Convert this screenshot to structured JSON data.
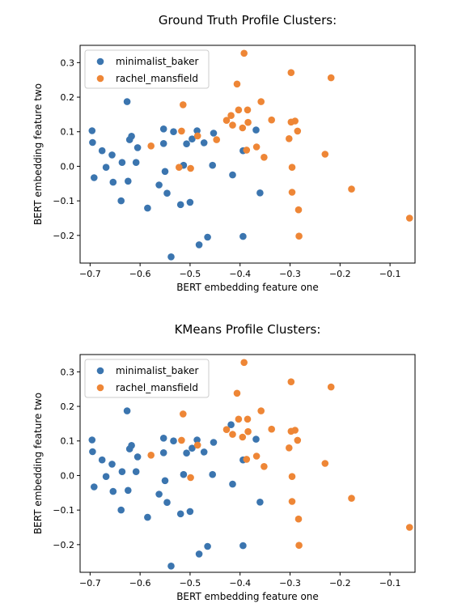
{
  "chart_data": [
    {
      "type": "scatter",
      "title": "Ground Truth Profile Clusters:",
      "xlabel": "BERT embedding feature one",
      "ylabel": "BERT embedding feature two",
      "xlim": [
        -0.72,
        -0.05
      ],
      "ylim": [
        -0.28,
        0.35
      ],
      "xticks": [
        -0.7,
        -0.6,
        -0.5,
        -0.4,
        -0.3,
        -0.2,
        -0.1
      ],
      "xtick_labels": [
        "−0.7",
        "−0.6",
        "−0.5",
        "−0.4",
        "−0.3",
        "−0.2",
        "−0.1"
      ],
      "yticks": [
        -0.2,
        -0.1,
        0.0,
        0.1,
        0.2,
        0.3
      ],
      "ytick_labels": [
        "−0.2",
        "−0.1",
        "0.0",
        "0.1",
        "0.2",
        "0.3"
      ],
      "legend": "top-left",
      "series": [
        {
          "name": "minimalist_baker",
          "color": "#3b75af",
          "points": [
            [
              -0.696,
              0.103
            ],
            [
              -0.695,
              0.069
            ],
            [
              -0.692,
              -0.033
            ],
            [
              -0.676,
              0.045
            ],
            [
              -0.668,
              -0.003
            ],
            [
              -0.656,
              0.033
            ],
            [
              -0.654,
              -0.046
            ],
            [
              -0.638,
              -0.1
            ],
            [
              -0.636,
              0.011
            ],
            [
              -0.626,
              0.187
            ],
            [
              -0.624,
              -0.043
            ],
            [
              -0.621,
              0.077
            ],
            [
              -0.617,
              0.087
            ],
            [
              -0.608,
              0.011
            ],
            [
              -0.605,
              0.054
            ],
            [
              -0.585,
              -0.121
            ],
            [
              -0.562,
              -0.054
            ],
            [
              -0.553,
              0.066
            ],
            [
              -0.553,
              0.108
            ],
            [
              -0.55,
              -0.015
            ],
            [
              -0.546,
              -0.078
            ],
            [
              -0.538,
              -0.262
            ],
            [
              -0.533,
              0.1
            ],
            [
              -0.519,
              -0.111
            ],
            [
              -0.513,
              0.003
            ],
            [
              -0.507,
              0.065
            ],
            [
              -0.5,
              -0.104
            ],
            [
              -0.496,
              0.079
            ],
            [
              -0.486,
              0.103
            ],
            [
              -0.482,
              -0.227
            ],
            [
              -0.472,
              0.068
            ],
            [
              -0.465,
              -0.205
            ],
            [
              -0.455,
              0.003
            ],
            [
              -0.453,
              0.096
            ],
            [
              -0.415,
              -0.025
            ],
            [
              -0.394,
              -0.203
            ],
            [
              -0.394,
              0.045
            ],
            [
              -0.368,
              0.105
            ],
            [
              -0.36,
              -0.077
            ]
          ]
        },
        {
          "name": "rachel_mansfield",
          "color": "#ee8636",
          "points": [
            [
              -0.578,
              0.059
            ],
            [
              -0.522,
              -0.003
            ],
            [
              -0.517,
              0.102
            ],
            [
              -0.514,
              0.178
            ],
            [
              -0.499,
              -0.006
            ],
            [
              -0.485,
              0.088
            ],
            [
              -0.447,
              0.077
            ],
            [
              -0.427,
              0.133
            ],
            [
              -0.418,
              0.147
            ],
            [
              -0.415,
              0.119
            ],
            [
              -0.406,
              0.238
            ],
            [
              -0.403,
              0.163
            ],
            [
              -0.395,
              0.111
            ],
            [
              -0.392,
              0.327
            ],
            [
              -0.387,
              0.047
            ],
            [
              -0.385,
              0.163
            ],
            [
              -0.384,
              0.127
            ],
            [
              -0.367,
              0.056
            ],
            [
              -0.358,
              0.187
            ],
            [
              -0.352,
              0.026
            ],
            [
              -0.337,
              0.134
            ],
            [
              -0.302,
              0.08
            ],
            [
              -0.298,
              0.271
            ],
            [
              -0.298,
              0.128
            ],
            [
              -0.296,
              -0.003
            ],
            [
              -0.296,
              -0.075
            ],
            [
              -0.29,
              0.131
            ],
            [
              -0.285,
              0.102
            ],
            [
              -0.283,
              -0.126
            ],
            [
              -0.282,
              -0.202
            ],
            [
              -0.23,
              0.035
            ],
            [
              -0.218,
              0.256
            ],
            [
              -0.177,
              -0.066
            ],
            [
              -0.061,
              -0.15
            ]
          ]
        }
      ]
    },
    {
      "type": "scatter",
      "title": "KMeans Profile Clusters:",
      "xlabel": "BERT embedding feature one",
      "ylabel": "BERT embedding feature two",
      "xlim": [
        -0.72,
        -0.05
      ],
      "ylim": [
        -0.28,
        0.35
      ],
      "xticks": [
        -0.7,
        -0.6,
        -0.5,
        -0.4,
        -0.3,
        -0.2,
        -0.1
      ],
      "xtick_labels": [
        "−0.7",
        "−0.6",
        "−0.5",
        "−0.4",
        "−0.3",
        "−0.2",
        "−0.1"
      ],
      "yticks": [
        -0.2,
        -0.1,
        0.0,
        0.1,
        0.2,
        0.3
      ],
      "ytick_labels": [
        "−0.2",
        "−0.1",
        "0.0",
        "0.1",
        "0.2",
        "0.3"
      ],
      "legend": "top-left",
      "series": [
        {
          "name": "minimalist_baker",
          "color": "#3b75af",
          "points": [
            [
              -0.696,
              0.103
            ],
            [
              -0.695,
              0.069
            ],
            [
              -0.692,
              -0.033
            ],
            [
              -0.676,
              0.045
            ],
            [
              -0.668,
              -0.003
            ],
            [
              -0.656,
              0.033
            ],
            [
              -0.654,
              -0.046
            ],
            [
              -0.638,
              -0.1
            ],
            [
              -0.636,
              0.011
            ],
            [
              -0.626,
              0.187
            ],
            [
              -0.624,
              -0.043
            ],
            [
              -0.621,
              0.077
            ],
            [
              -0.617,
              0.087
            ],
            [
              -0.608,
              0.011
            ],
            [
              -0.605,
              0.054
            ],
            [
              -0.585,
              -0.121
            ],
            [
              -0.562,
              -0.054
            ],
            [
              -0.553,
              0.066
            ],
            [
              -0.553,
              0.108
            ],
            [
              -0.55,
              -0.015
            ],
            [
              -0.546,
              -0.078
            ],
            [
              -0.538,
              -0.262
            ],
            [
              -0.533,
              0.1
            ],
            [
              -0.519,
              -0.111
            ],
            [
              -0.513,
              0.003
            ],
            [
              -0.507,
              0.065
            ],
            [
              -0.5,
              -0.104
            ],
            [
              -0.496,
              0.079
            ],
            [
              -0.486,
              0.103
            ],
            [
              -0.482,
              -0.227
            ],
            [
              -0.472,
              0.068
            ],
            [
              -0.465,
              -0.205
            ],
            [
              -0.455,
              0.003
            ],
            [
              -0.453,
              0.096
            ],
            [
              -0.418,
              0.147
            ],
            [
              -0.415,
              -0.025
            ],
            [
              -0.394,
              -0.203
            ],
            [
              -0.394,
              0.045
            ],
            [
              -0.368,
              0.105
            ],
            [
              -0.36,
              -0.077
            ]
          ]
        },
        {
          "name": "rachel_mansfield",
          "color": "#ee8636",
          "points": [
            [
              -0.578,
              0.059
            ],
            [
              -0.517,
              0.102
            ],
            [
              -0.514,
              0.178
            ],
            [
              -0.499,
              -0.006
            ],
            [
              -0.485,
              0.088
            ],
            [
              -0.427,
              0.133
            ],
            [
              -0.415,
              0.119
            ],
            [
              -0.406,
              0.238
            ],
            [
              -0.403,
              0.163
            ],
            [
              -0.395,
              0.111
            ],
            [
              -0.392,
              0.327
            ],
            [
              -0.387,
              0.047
            ],
            [
              -0.385,
              0.163
            ],
            [
              -0.384,
              0.127
            ],
            [
              -0.367,
              0.056
            ],
            [
              -0.358,
              0.187
            ],
            [
              -0.352,
              0.026
            ],
            [
              -0.337,
              0.134
            ],
            [
              -0.302,
              0.08
            ],
            [
              -0.298,
              0.271
            ],
            [
              -0.298,
              0.128
            ],
            [
              -0.296,
              -0.003
            ],
            [
              -0.296,
              -0.075
            ],
            [
              -0.29,
              0.131
            ],
            [
              -0.285,
              0.102
            ],
            [
              -0.283,
              -0.126
            ],
            [
              -0.282,
              -0.202
            ],
            [
              -0.23,
              0.035
            ],
            [
              -0.218,
              0.256
            ],
            [
              -0.177,
              -0.066
            ],
            [
              -0.061,
              -0.15
            ]
          ]
        }
      ]
    }
  ]
}
